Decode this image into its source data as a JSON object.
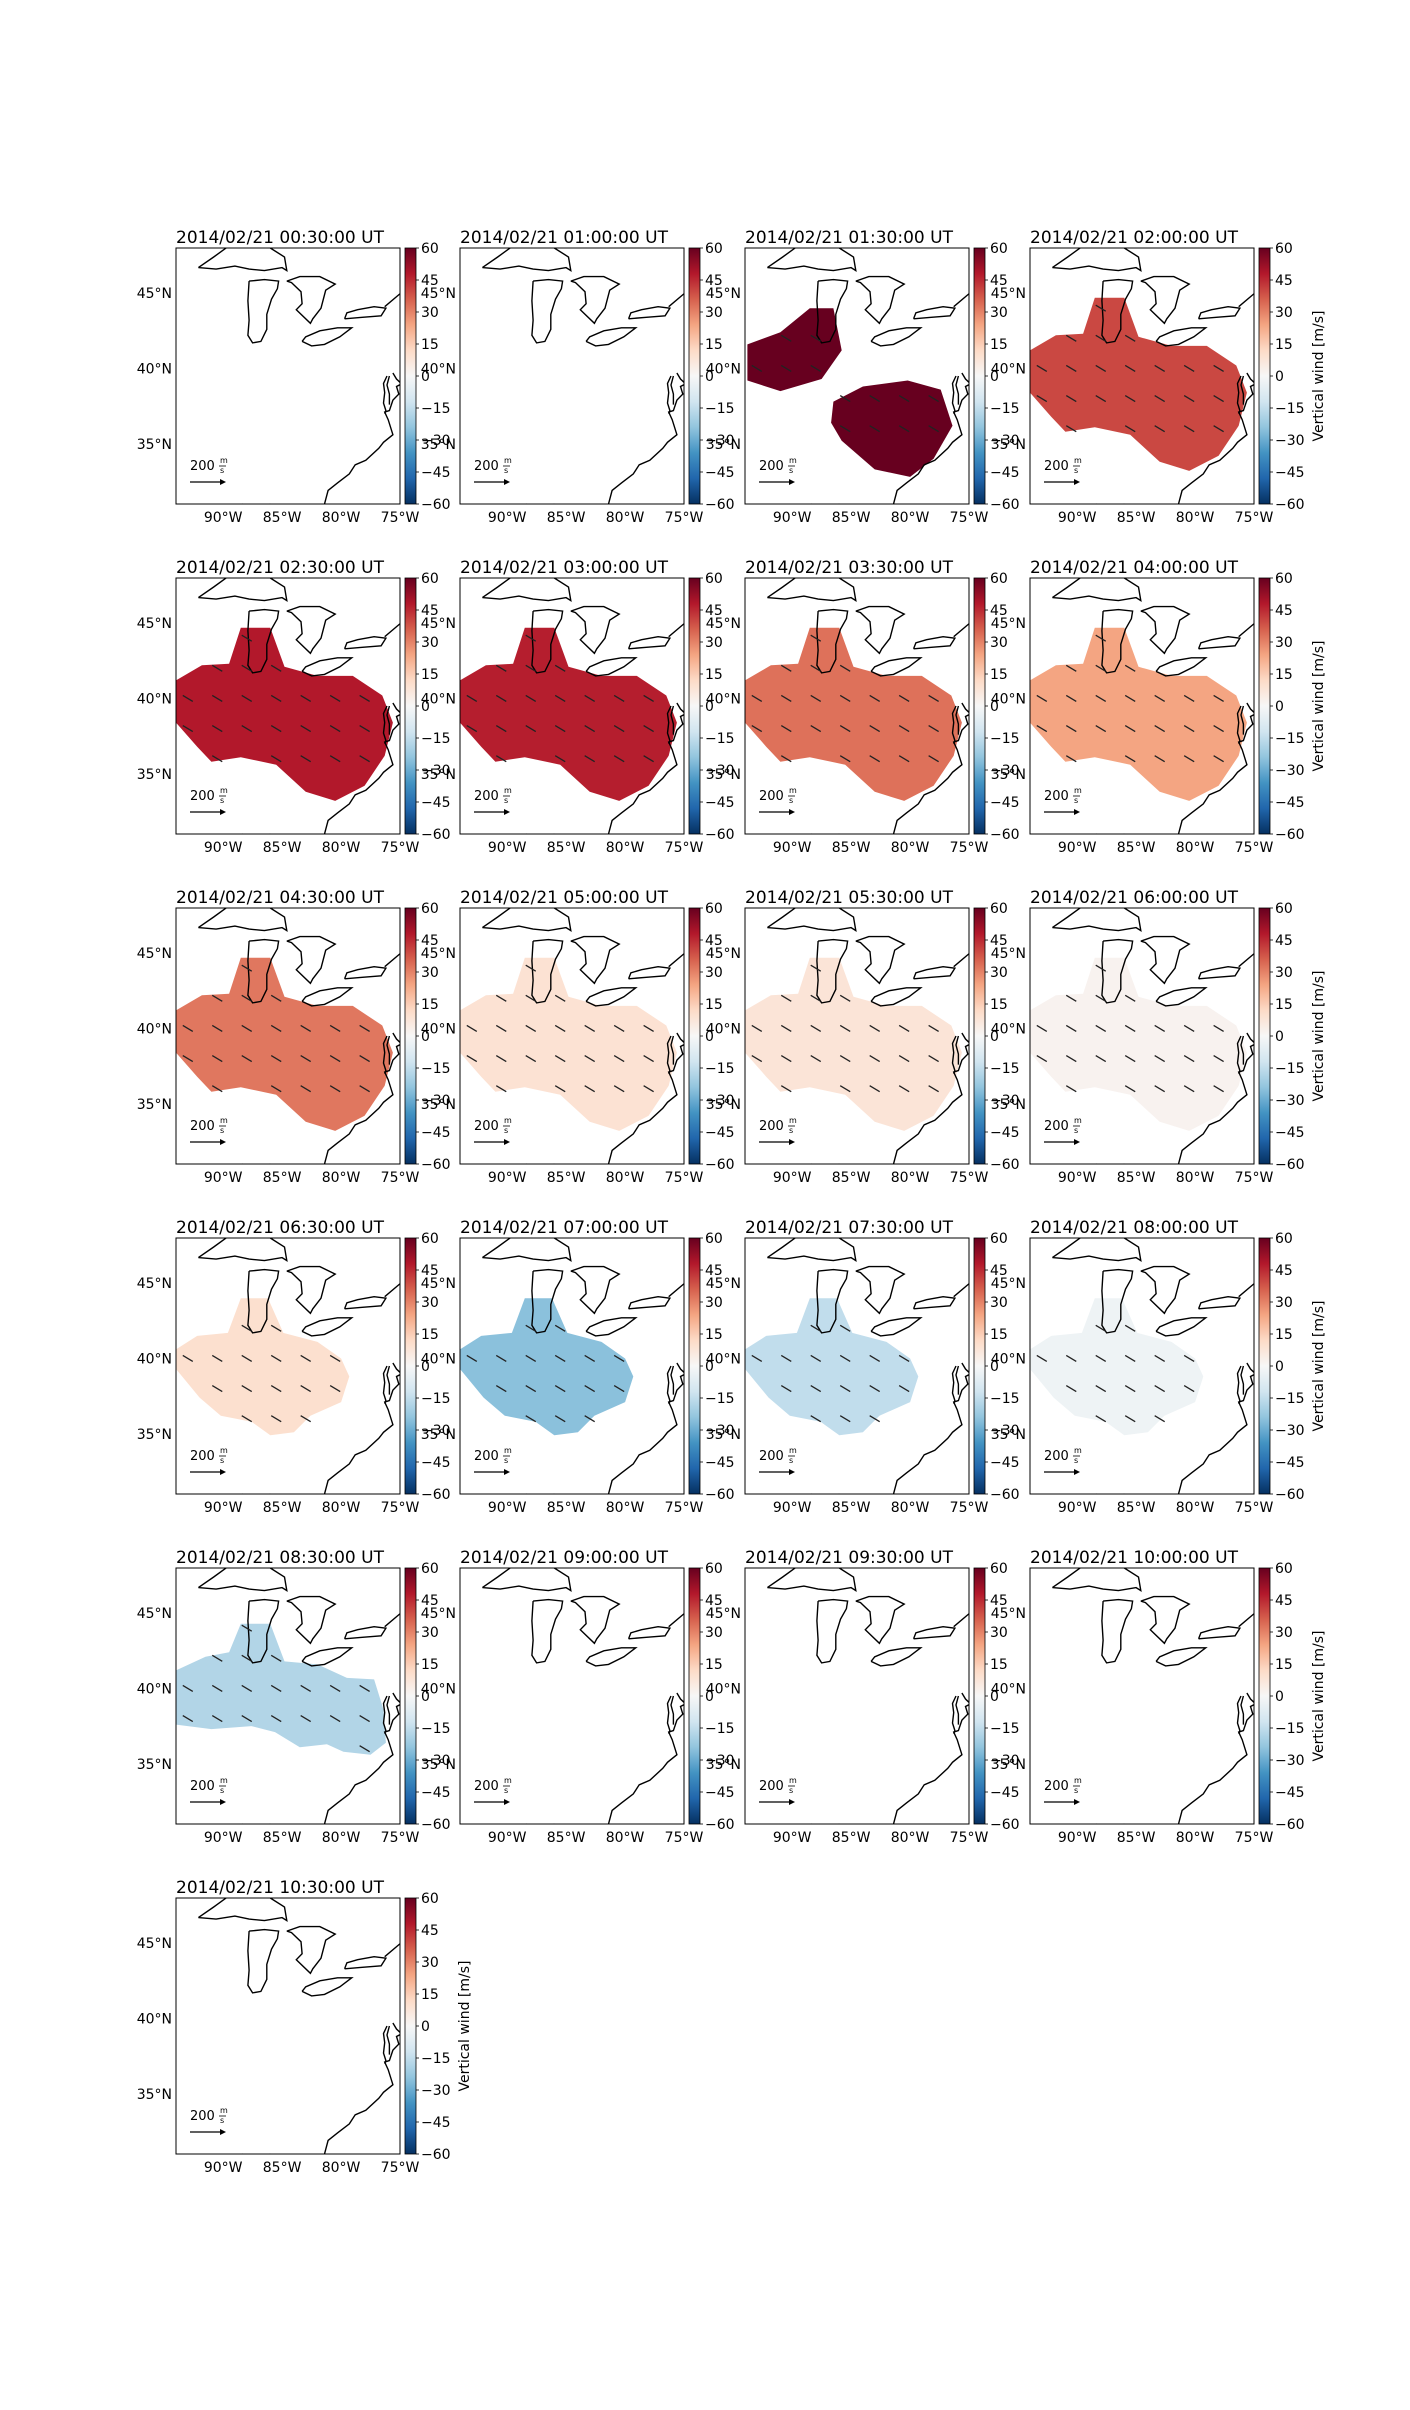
{
  "figure": {
    "colorbar_label": "Vertical wind [m/s]",
    "colorbar_ticks": [
      "60",
      "45",
      "30",
      "15",
      "0",
      "−15",
      "−30",
      "−45",
      "−60"
    ],
    "lon_ticks": [
      "90°W",
      "85°W",
      "80°W",
      "75°W"
    ],
    "lat_ticks": [
      "45°N",
      "40°N",
      "35°N"
    ],
    "reference_arrow": {
      "value": "200",
      "unit_num": "m",
      "unit_den": "s"
    },
    "colormap": [
      "#67001f",
      "#b2182b",
      "#d6604d",
      "#f4a582",
      "#fddbc7",
      "#f7f7f7",
      "#d1e5f0",
      "#92c5de",
      "#4393c3",
      "#2166ac",
      "#053061"
    ],
    "coast_color": "#000000"
  },
  "chart_data": {
    "type": "heatmap",
    "colorbar_range": [
      -60,
      60
    ],
    "lon_range": [
      -94,
      -75
    ],
    "lat_range": [
      31,
      48
    ],
    "panels": [
      {
        "title": "2014/02/21 00:30:00 UT",
        "value": null,
        "region": null
      },
      {
        "title": "2014/02/21 01:00:00 UT",
        "value": null,
        "region": null
      },
      {
        "title": "2014/02/21 01:30:00 UT",
        "value": 60,
        "region": "two-lobes"
      },
      {
        "title": "2014/02/21 02:00:00 UT",
        "value": 40,
        "region": "west-east"
      },
      {
        "title": "2014/02/21 02:30:00 UT",
        "value": 48,
        "region": "west-east"
      },
      {
        "title": "2014/02/21 03:00:00 UT",
        "value": 47,
        "region": "west-east"
      },
      {
        "title": "2014/02/21 03:30:00 UT",
        "value": 33,
        "region": "west-east"
      },
      {
        "title": "2014/02/21 04:00:00 UT",
        "value": 24,
        "region": "west-east"
      },
      {
        "title": "2014/02/21 04:30:00 UT",
        "value": 32,
        "region": "west-east"
      },
      {
        "title": "2014/02/21 05:00:00 UT",
        "value": 9,
        "region": "west-east"
      },
      {
        "title": "2014/02/21 05:30:00 UT",
        "value": 8,
        "region": "west-east"
      },
      {
        "title": "2014/02/21 06:00:00 UT",
        "value": 2,
        "region": "west-east"
      },
      {
        "title": "2014/02/21 06:30:00 UT",
        "value": 10,
        "region": "central"
      },
      {
        "title": "2014/02/21 07:00:00 UT",
        "value": -25,
        "region": "central"
      },
      {
        "title": "2014/02/21 07:30:00 UT",
        "value": -15,
        "region": "central"
      },
      {
        "title": "2014/02/21 08:00:00 UT",
        "value": -3,
        "region": "central"
      },
      {
        "title": "2014/02/21 08:30:00 UT",
        "value": -18,
        "region": "west-south"
      },
      {
        "title": "2014/02/21 09:00:00 UT",
        "value": null,
        "region": null
      },
      {
        "title": "2014/02/21 09:30:00 UT",
        "value": null,
        "region": null
      },
      {
        "title": "2014/02/21 10:00:00 UT",
        "value": null,
        "region": null
      },
      {
        "title": "2014/02/21 10:30:00 UT",
        "value": null,
        "region": null
      }
    ]
  }
}
